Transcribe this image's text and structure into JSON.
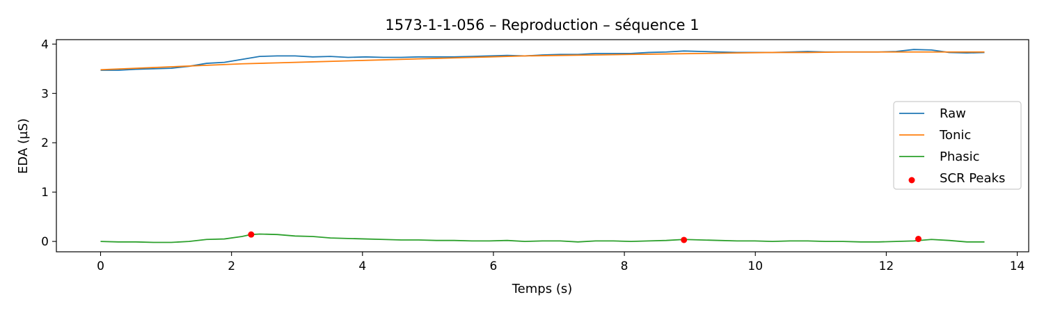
{
  "chart_data": {
    "type": "line",
    "title": "1573-1-1-056 – Reproduction – séquence 1",
    "xlabel": "Temps (s)",
    "ylabel": "EDA (µS)",
    "xlim": [
      -0.675,
      14.175
    ],
    "ylim": [
      -0.21,
      4.09
    ],
    "xticks": [
      0,
      2,
      4,
      6,
      8,
      10,
      12,
      14
    ],
    "yticks": [
      0,
      1,
      2,
      3,
      4
    ],
    "grid": false,
    "legend_position": "center-right",
    "series": [
      {
        "name": "Raw",
        "kind": "line",
        "color": "#1f77b4",
        "x": [
          0,
          0.27,
          0.54,
          0.81,
          1.08,
          1.35,
          1.62,
          1.89,
          2.16,
          2.43,
          2.7,
          2.97,
          3.24,
          3.51,
          3.78,
          4.05,
          4.32,
          4.59,
          4.86,
          5.13,
          5.4,
          5.67,
          5.94,
          6.21,
          6.48,
          6.75,
          7.02,
          7.29,
          7.56,
          7.83,
          8.1,
          8.37,
          8.64,
          8.91,
          9.18,
          9.45,
          9.72,
          9.99,
          10.26,
          10.53,
          10.8,
          11.07,
          11.34,
          11.61,
          11.88,
          12.15,
          12.42,
          12.69,
          12.96,
          13.23,
          13.5
        ],
        "y": [
          3.47,
          3.47,
          3.49,
          3.5,
          3.51,
          3.55,
          3.61,
          3.63,
          3.69,
          3.75,
          3.76,
          3.76,
          3.74,
          3.75,
          3.73,
          3.74,
          3.73,
          3.73,
          3.74,
          3.74,
          3.74,
          3.75,
          3.76,
          3.77,
          3.76,
          3.78,
          3.79,
          3.79,
          3.81,
          3.81,
          3.81,
          3.83,
          3.84,
          3.86,
          3.85,
          3.84,
          3.83,
          3.83,
          3.83,
          3.84,
          3.85,
          3.84,
          3.84,
          3.84,
          3.84,
          3.85,
          3.89,
          3.88,
          3.83,
          3.82,
          3.83
        ]
      },
      {
        "name": "Tonic",
        "kind": "line",
        "color": "#ff7f0e",
        "x": [
          0,
          0.54,
          1.08,
          1.62,
          2.16,
          2.7,
          3.24,
          3.78,
          4.32,
          4.86,
          5.4,
          5.94,
          6.48,
          7.02,
          7.56,
          8.1,
          8.64,
          9.18,
          9.72,
          10.26,
          10.8,
          11.34,
          11.88,
          12.42,
          12.96,
          13.5
        ],
        "y": [
          3.48,
          3.51,
          3.54,
          3.57,
          3.6,
          3.62,
          3.64,
          3.66,
          3.68,
          3.7,
          3.72,
          3.74,
          3.76,
          3.77,
          3.78,
          3.79,
          3.8,
          3.81,
          3.82,
          3.83,
          3.83,
          3.84,
          3.84,
          3.84,
          3.84,
          3.84
        ]
      },
      {
        "name": "Phasic",
        "kind": "line",
        "color": "#2ca02c",
        "x": [
          0,
          0.27,
          0.54,
          0.81,
          1.08,
          1.35,
          1.62,
          1.89,
          2.16,
          2.3,
          2.43,
          2.7,
          2.97,
          3.24,
          3.51,
          3.78,
          4.05,
          4.32,
          4.59,
          4.86,
          5.13,
          5.4,
          5.67,
          5.94,
          6.21,
          6.48,
          6.75,
          7.02,
          7.29,
          7.56,
          7.83,
          8.1,
          8.37,
          8.64,
          8.91,
          9.18,
          9.45,
          9.72,
          9.99,
          10.26,
          10.53,
          10.8,
          11.07,
          11.34,
          11.61,
          11.88,
          12.15,
          12.42,
          12.69,
          12.96,
          13.23,
          13.5
        ],
        "y": [
          0,
          -0.01,
          -0.01,
          -0.02,
          -0.02,
          0,
          0.04,
          0.05,
          0.1,
          0.14,
          0.15,
          0.14,
          0.11,
          0.1,
          0.07,
          0.06,
          0.05,
          0.04,
          0.03,
          0.03,
          0.02,
          0.02,
          0.01,
          0.01,
          0.02,
          0,
          0.01,
          0.01,
          -0.01,
          0.01,
          0.01,
          0,
          0.01,
          0.02,
          0.04,
          0.03,
          0.02,
          0.01,
          0.01,
          0,
          0.01,
          0.01,
          0,
          0,
          -0.01,
          -0.01,
          0,
          0.01,
          0.04,
          0.02,
          -0.01,
          -0.01
        ]
      },
      {
        "name": "SCR Peaks",
        "kind": "scatter",
        "color": "#ff0000",
        "x": [
          2.3,
          8.91,
          12.49
        ],
        "y": [
          0.14,
          0.03,
          0.05
        ]
      }
    ]
  }
}
